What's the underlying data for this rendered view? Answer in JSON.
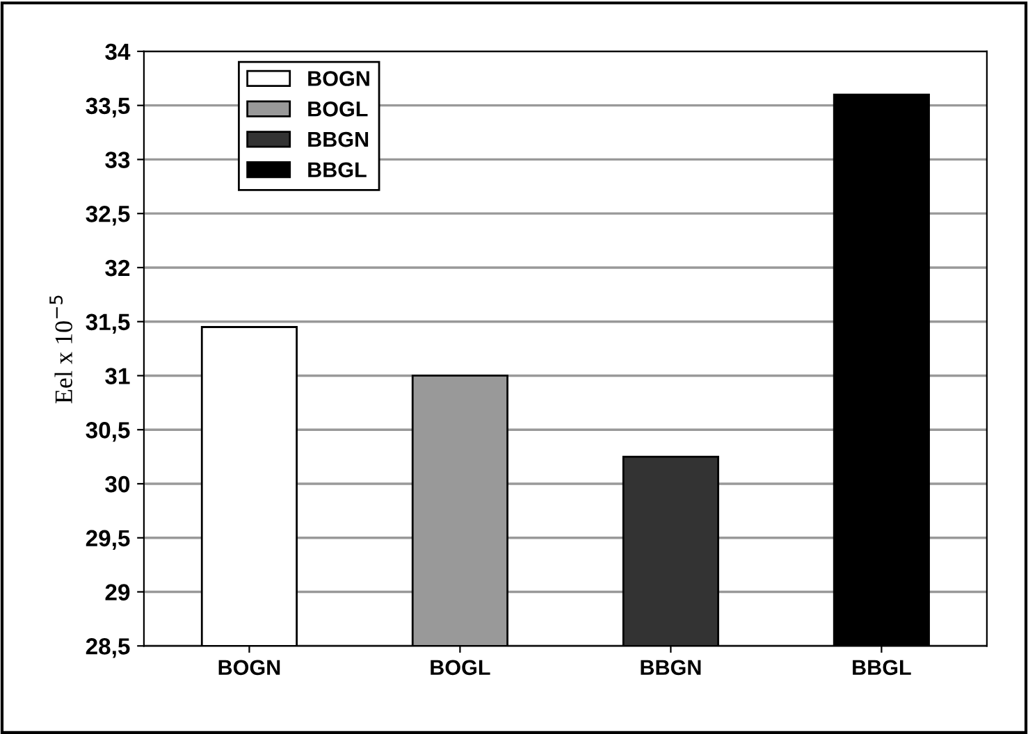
{
  "chart_data": {
    "type": "bar",
    "ylabel": "Eel x 10$^{−5}$",
    "categories": [
      "BOGN",
      "BOGL",
      "BBGN",
      "BBGL"
    ],
    "series": [
      {
        "name": "BOGN",
        "color": "#ffffff",
        "values": [
          31.45,
          null,
          null,
          null
        ]
      },
      {
        "name": "BOGL",
        "color": "#999999",
        "values": [
          null,
          31.0,
          null,
          null
        ]
      },
      {
        "name": "BBGN",
        "color": "#333333",
        "values": [
          null,
          null,
          30.25,
          null
        ]
      },
      {
        "name": "BBGL",
        "color": "#000000",
        "values": [
          null,
          null,
          null,
          33.6
        ]
      }
    ],
    "ylim": [
      28.5,
      34
    ],
    "yticks": [
      {
        "value": 28.5,
        "label": "28,5"
      },
      29,
      {
        "value": 29.5,
        "label": "29,5"
      },
      30,
      {
        "value": 30.5,
        "label": "30,5"
      },
      31,
      {
        "value": 31.5,
        "label": "31,5"
      },
      32,
      {
        "value": 32.5,
        "label": "32,5"
      },
      33,
      {
        "value": 33.5,
        "label": "33,5"
      },
      34
    ],
    "grid": "y",
    "legend": "top left",
    "stacked": false
  }
}
